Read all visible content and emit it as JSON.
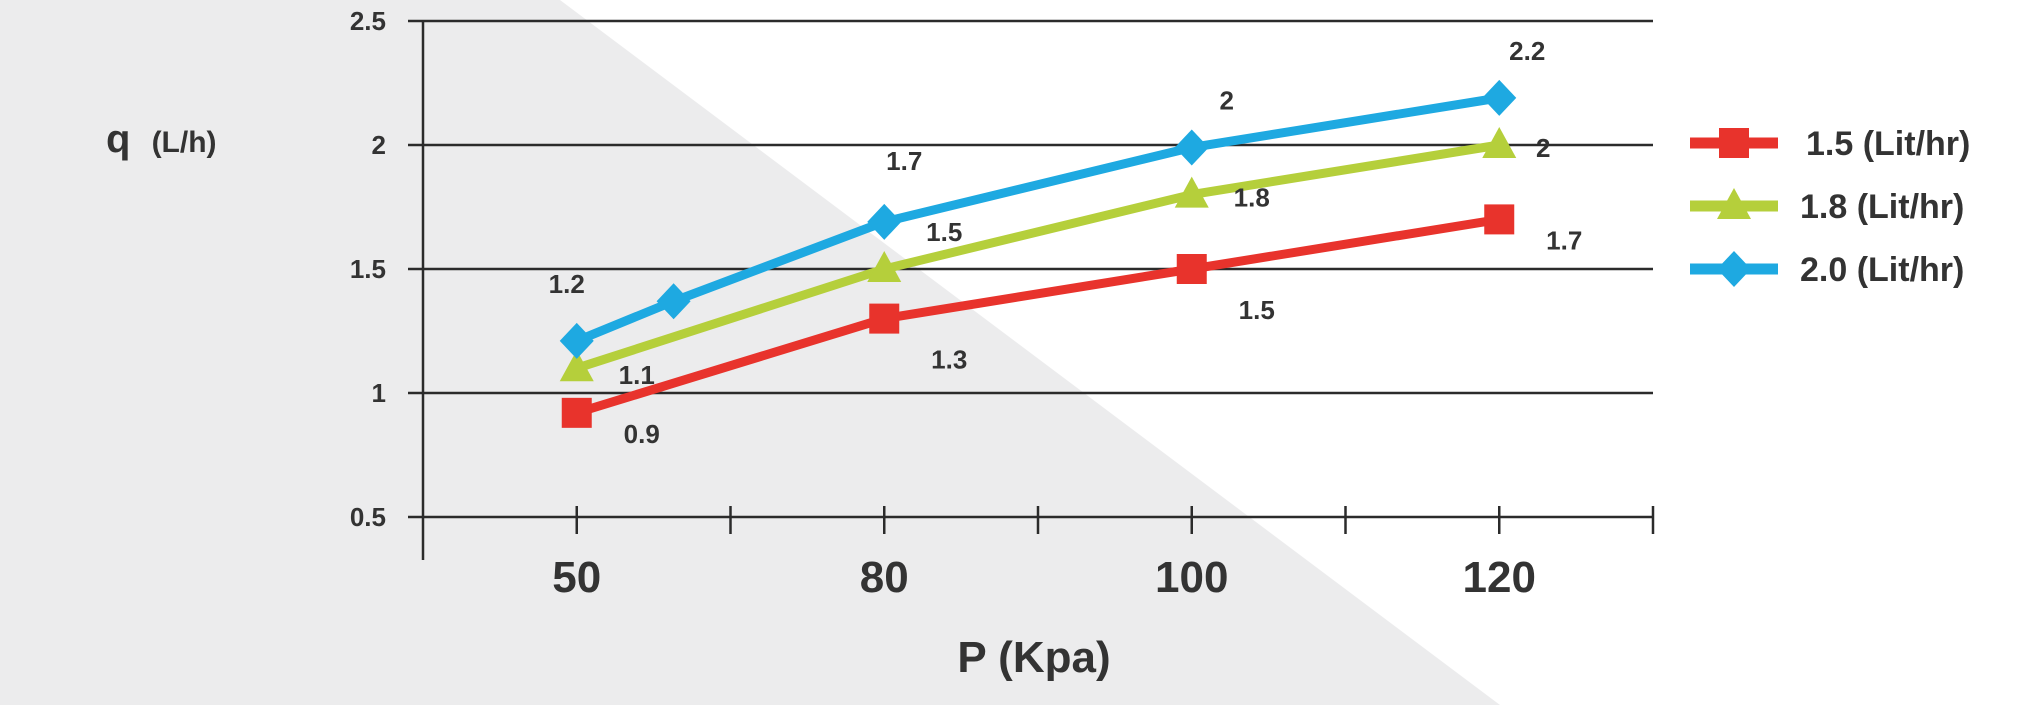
{
  "chart_data": {
    "type": "line",
    "ylabel": "q (L/h)",
    "ylabel_main": "q",
    "ylabel_unit": "(L/h)",
    "xlabel": "P  (Kpa)",
    "ylim": [
      0.5,
      2.5
    ],
    "yticks": [
      "0.5",
      "1",
      "1.5",
      "2",
      "2.5"
    ],
    "xticks": [
      "50",
      "80",
      "100",
      "120"
    ],
    "grid": "horizontal",
    "legend_position": "right",
    "series": [
      {
        "name": "1.5 (Lit/hr)",
        "color": "#e8332c",
        "marker": "square",
        "points": [
          {
            "x": "50",
            "y": 0.92,
            "label": "0.9"
          },
          {
            "x": "80",
            "y": 1.3,
            "label": "1.3"
          },
          {
            "x": "100",
            "y": 1.5,
            "label": "1.5"
          },
          {
            "x": "120",
            "y": 1.7,
            "label": "1.7"
          }
        ]
      },
      {
        "name": "1.8 (Lit/hr)",
        "color": "#b5cf3b",
        "marker": "triangle",
        "points": [
          {
            "x": "50",
            "y": 1.1,
            "label": "1.1"
          },
          {
            "x": "80",
            "y": 1.5,
            "label": "1.5"
          },
          {
            "x": "100",
            "y": 1.8,
            "label": "1.8"
          },
          {
            "x": "120",
            "y": 2.0,
            "label": "2"
          }
        ]
      },
      {
        "name": "2.0 (Lit/hr)",
        "color": "#1ea9e1",
        "marker": "diamond",
        "points": [
          {
            "x": "50",
            "y": 1.21,
            "label": "1.2"
          },
          {
            "x": "",
            "y": 1.37,
            "label": ""
          },
          {
            "x": "80",
            "y": 1.69,
            "label": "1.7"
          },
          {
            "x": "100",
            "y": 1.99,
            "label": "2"
          },
          {
            "x": "120",
            "y": 2.19,
            "label": "2.2"
          }
        ]
      }
    ]
  }
}
